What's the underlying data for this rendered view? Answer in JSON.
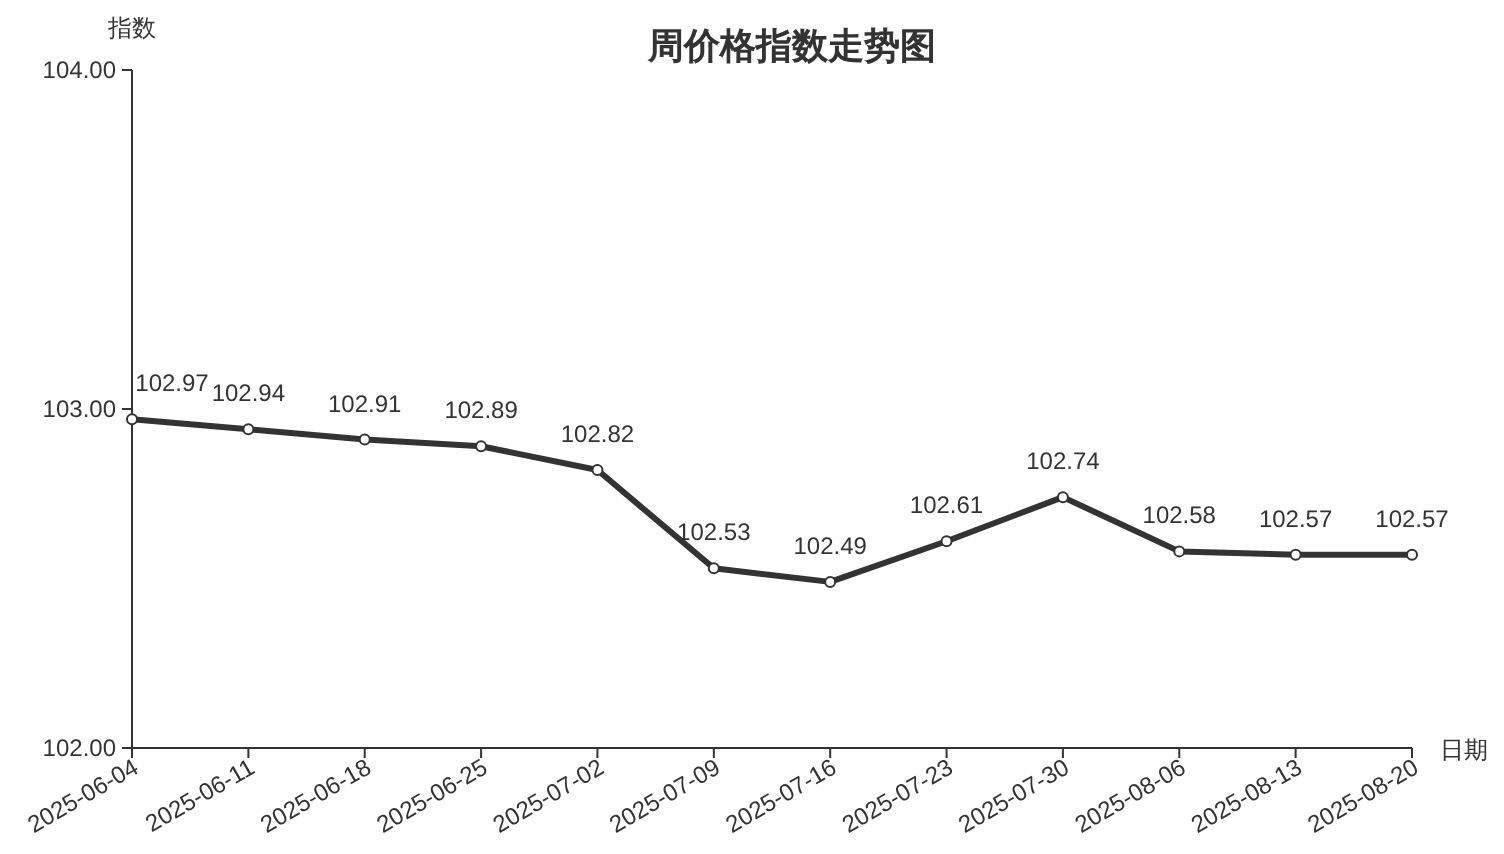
{
  "chart_data": {
    "type": "line",
    "title": "周价格指数走势图",
    "ylabel": "指数",
    "xlabel": "日期",
    "categories": [
      "2025-06-04",
      "2025-06-11",
      "2025-06-18",
      "2025-06-25",
      "2025-07-02",
      "2025-07-09",
      "2025-07-16",
      "2025-07-23",
      "2025-07-30",
      "2025-08-06",
      "2025-08-13",
      "2025-08-20"
    ],
    "series": [
      {
        "color": "#333333",
        "values": [
          102.97,
          102.94,
          102.91,
          102.89,
          102.82,
          102.53,
          102.49,
          102.61,
          102.74,
          102.58,
          102.57,
          102.57
        ]
      }
    ],
    "ylim": [
      102,
      104
    ],
    "yticks": [
      {
        "value": 102,
        "label": "102.00"
      },
      {
        "value": 103,
        "label": "103.00"
      },
      {
        "value": 104,
        "label": "104.00"
      }
    ],
    "data_labels": true,
    "marker": "circle",
    "line_style": "solid",
    "grid": false
  }
}
